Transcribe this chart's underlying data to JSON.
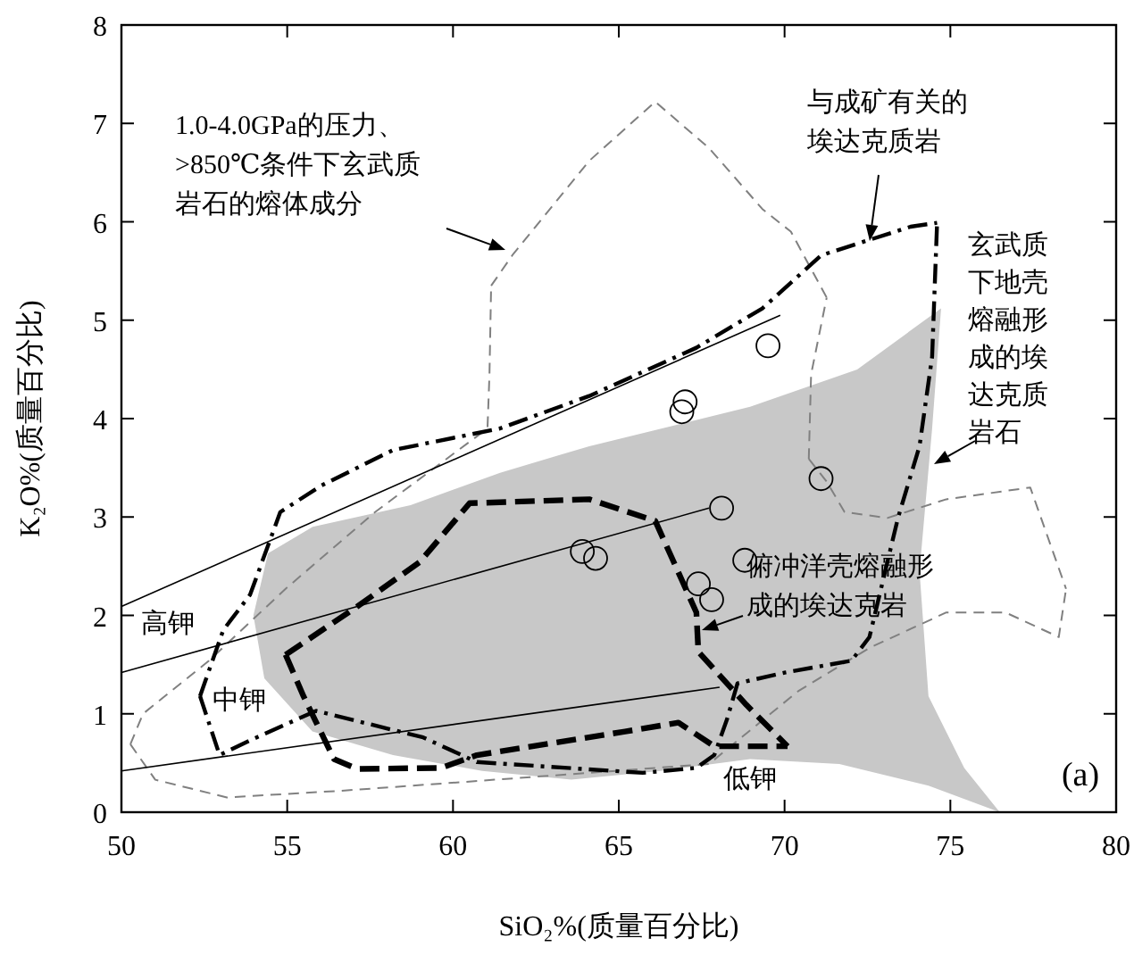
{
  "chart_data": {
    "type": "scatter",
    "xlabel": "SiO₂%(质量百分比)",
    "ylabel": "K₂O%(质量百分比)",
    "xlim": [
      50,
      80
    ],
    "ylim": [
      0,
      8
    ],
    "xticks": [
      50,
      55,
      60,
      65,
      70,
      75,
      80
    ],
    "yticks": [
      0,
      1,
      2,
      3,
      4,
      5,
      6,
      7,
      8
    ],
    "grid": false,
    "series": [
      {
        "type": "area",
        "color": "#c8c8c8",
        "x": [
          53.98,
          54.42,
          55.77,
          58.72,
          61.42,
          64.11,
          68.96,
          72.19,
          74.72,
          74.45,
          74.07,
          74.34,
          75.42,
          76.49,
          74.34,
          71.65,
          68.96,
          66.26,
          63.57,
          60.88,
          58.19,
          55.76,
          54.31,
          53.98
        ],
        "values": [
          2.0,
          2.63,
          2.9,
          3.12,
          3.45,
          3.72,
          4.12,
          4.5,
          5.12,
          3.9,
          2.45,
          1.18,
          0.45,
          0,
          0.27,
          0.49,
          0.54,
          0.42,
          0.33,
          0.42,
          0.58,
          0.82,
          1.36,
          2.0
        ]
      },
      {
        "type": "line",
        "color": "#808080",
        "line_style": "dashed",
        "x": [
          50.27,
          50.65,
          52.64,
          54.95,
          57.65,
          61.04,
          61.1,
          61.15
        ],
        "values": [
          0.69,
          1.0,
          1.54,
          2.27,
          3.05,
          3.9,
          4.45,
          5.35
        ]
      },
      {
        "type": "line",
        "color": "#808080",
        "line_style": "dashed",
        "x": [
          50.27,
          51.02,
          53.18,
          56.73,
          61.25,
          64.11,
          67.72,
          70.41,
          72.56,
          74.88,
          76.66,
          78.27,
          78.49
        ],
        "values": [
          0.69,
          0.33,
          0.15,
          0.22,
          0.33,
          0.4,
          0.49,
          1.23,
          1.67,
          2.03,
          2.03,
          1.78,
          2.27
        ]
      },
      {
        "type": "line",
        "color": "#808080",
        "line_style": "dashed",
        "x": [
          70.73,
          71.27,
          71.81,
          73.1,
          74.88,
          77.41,
          78.49
        ],
        "values": [
          3.59,
          3.36,
          3.05,
          2.99,
          3.18,
          3.3,
          2.27
        ]
      },
      {
        "type": "line",
        "color": "#808080",
        "line_style": "dashed",
        "x": [
          70.73,
          70.8,
          71.27
        ],
        "values": [
          3.59,
          4.45,
          5.23
        ]
      },
      {
        "type": "line",
        "color": "#808080",
        "line_style": "dashed",
        "x": [
          61.15,
          61.79,
          64.11,
          66.1,
          67.72,
          69.33,
          70.19,
          71.27
        ],
        "values": [
          5.35,
          5.66,
          6.62,
          7.22,
          6.75,
          6.13,
          5.9,
          5.23
        ]
      },
      {
        "type": "line",
        "color": "#000000",
        "line_style": "solid",
        "x": [
          50,
          69.87
        ],
        "values": [
          2.09,
          5.05
        ]
      },
      {
        "type": "line",
        "color": "#000000",
        "line_style": "solid",
        "x": [
          50,
          67.72
        ],
        "values": [
          1.42,
          3.09
        ]
      },
      {
        "type": "line",
        "color": "#000000",
        "line_style": "solid",
        "x": [
          50,
          68.04
        ],
        "values": [
          0.42,
          1.27
        ]
      },
      {
        "type": "line",
        "color": "#000000",
        "line_style": "dashdot",
        "x": [
          52.37,
          53.07,
          53.88,
          54.79,
          56.03,
          58.19,
          61.42,
          64.11,
          67.34,
          69.33,
          71.11,
          73.8,
          74.6
        ],
        "values": [
          1.18,
          1.85,
          2.21,
          3.05,
          3.32,
          3.68,
          3.9,
          4.23,
          4.72,
          5.12,
          5.66,
          5.95,
          5.99
        ]
      },
      {
        "type": "line",
        "color": "#000000",
        "line_style": "dashdot",
        "x": [
          52.37,
          52.96,
          53.88,
          55.87,
          59.1,
          60.72,
          65.72,
          67.34,
          67.88,
          68.26,
          68.58,
          70.03,
          72.02,
          72.56,
          73.42,
          74.07,
          74.45,
          74.55,
          74.6
        ],
        "values": [
          1.18,
          0.58,
          0.73,
          1.03,
          0.76,
          0.51,
          0.4,
          0.45,
          0.58,
          0.94,
          1.31,
          1.42,
          1.54,
          1.78,
          2.99,
          3.72,
          4.63,
          5.54,
          5.99
        ]
      },
      {
        "type": "line",
        "color": "#000000",
        "line_style": "dashed",
        "x": [
          54.95,
          57.11,
          58.99,
          60.5,
          64.11,
          66.1,
          67.34,
          67.4,
          68.85,
          70.09
        ],
        "values": [
          1.6,
          2.09,
          2.54,
          3.14,
          3.18,
          2.96,
          2.03,
          1.63,
          1.09,
          0.67
        ]
      },
      {
        "type": "line",
        "color": "#000000",
        "line_style": "dashed",
        "x": [
          54.95,
          55.49,
          56.41,
          57.11,
          59.64,
          60.72,
          65.19,
          66.8,
          67.88,
          70.09
        ],
        "values": [
          1.6,
          1.18,
          0.54,
          0.44,
          0.45,
          0.58,
          0.82,
          0.91,
          0.67,
          0.67
        ]
      },
      {
        "color": "#000000",
        "marker": "circle",
        "x": [
          69.5,
          67.0,
          66.9,
          71.1,
          68.1,
          63.9,
          64.3,
          68.8,
          67.4,
          67.8
        ],
        "values": [
          4.74,
          4.17,
          4.07,
          3.39,
          3.09,
          2.65,
          2.58,
          2.56,
          2.32,
          2.16
        ]
      }
    ],
    "annotations": [
      "1.0-4.0GPa的压力、>850℃条件下玄武质岩石的熔体成分",
      "与成矿有关的埃达克质岩",
      "玄武质下地壳熔融形成的埃达克质岩石",
      "俯冲洋壳熔融形成的埃达克岩",
      "高钾",
      "中钾",
      "低钾",
      "(a)"
    ]
  }
}
